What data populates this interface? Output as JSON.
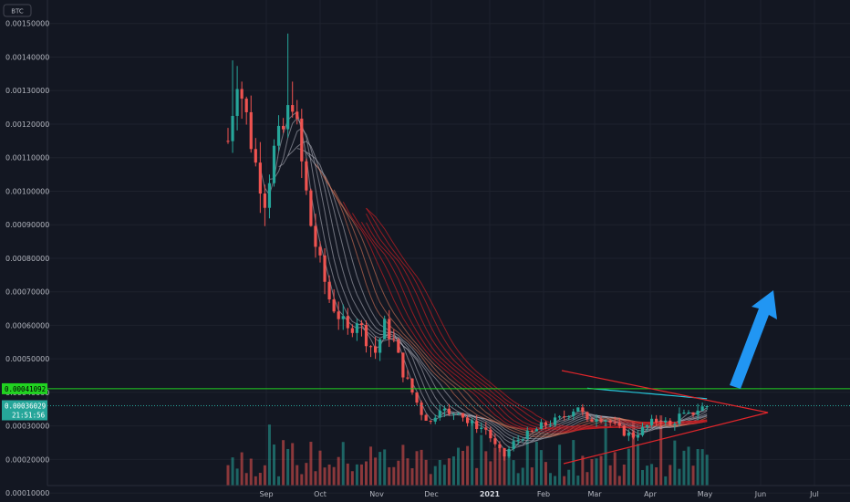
{
  "currency_badge": "BTC",
  "price_labels": {
    "resistance": "0.00041092",
    "current": "0.00036029",
    "countdown": "21:51:56"
  },
  "colors": {
    "background": "#131722",
    "grid": "#1e222d",
    "resistance": "#21d321",
    "up": "#26a69a",
    "down": "#ef5350",
    "triangle": "#e0262b",
    "arrow": "#2196f3",
    "long_ma": "#26c6da"
  },
  "chart_data": {
    "type": "candlestick",
    "ylim": [
      9.5e-05,
      0.00157
    ],
    "y_ticks": [
      "0.00010000",
      "0.00020000",
      "0.00030000",
      "0.00040000",
      "0.00050000",
      "0.00060000",
      "0.00070000",
      "0.00080000",
      "0.00090000",
      "0.00100000",
      "0.00110000",
      "0.00120000",
      "0.00130000",
      "0.00140000",
      "0.00150000"
    ],
    "x_ticks": [
      "Sep",
      "Oct",
      "Nov",
      "Dec",
      "2021",
      "Feb",
      "Mar",
      "Apr",
      "May",
      "Jun",
      "Jul"
    ],
    "resistance_level": 0.00041092,
    "current_price": 0.00036029,
    "close_series": [
      [
        0,
        0.00115
      ],
      [
        2,
        0.00135
      ],
      [
        4,
        0.00122
      ],
      [
        6,
        0.00108
      ],
      [
        8,
        0.00098
      ],
      [
        10,
        0.00112
      ],
      [
        12,
        0.00118
      ],
      [
        14,
        0.00128
      ],
      [
        16,
        0.00108
      ],
      [
        18,
        0.0009
      ],
      [
        20,
        0.00078
      ],
      [
        22,
        0.00068
      ],
      [
        24,
        0.00063
      ],
      [
        26,
        0.00058
      ],
      [
        28,
        0.00062
      ],
      [
        30,
        0.00056
      ],
      [
        32,
        0.00052
      ],
      [
        34,
        0.0006
      ],
      [
        36,
        0.00055
      ],
      [
        38,
        0.00046
      ],
      [
        40,
        0.0004
      ],
      [
        42,
        0.00034
      ],
      [
        44,
        0.00031
      ],
      [
        46,
        0.00036
      ],
      [
        48,
        0.00033
      ],
      [
        50,
        0.00035
      ],
      [
        52,
        0.00031
      ],
      [
        54,
        0.0003
      ],
      [
        56,
        0.00029
      ],
      [
        58,
        0.00024
      ],
      [
        60,
        0.00021
      ],
      [
        62,
        0.00025
      ],
      [
        64,
        0.00027
      ],
      [
        66,
        0.00028
      ],
      [
        68,
        0.0003
      ],
      [
        70,
        0.00031
      ],
      [
        72,
        0.00032
      ],
      [
        74,
        0.00034
      ],
      [
        76,
        0.00036
      ],
      [
        78,
        0.00031
      ],
      [
        80,
        0.00033
      ],
      [
        82,
        0.00032
      ],
      [
        84,
        0.0003
      ],
      [
        86,
        0.00028
      ],
      [
        88,
        0.00027
      ],
      [
        90,
        0.00029
      ],
      [
        92,
        0.00031
      ],
      [
        94,
        0.00032
      ],
      [
        96,
        0.0003
      ],
      [
        98,
        0.00033
      ],
      [
        100,
        0.00033
      ],
      [
        102,
        0.00035
      ],
      [
        104,
        0.00036
      ]
    ]
  }
}
